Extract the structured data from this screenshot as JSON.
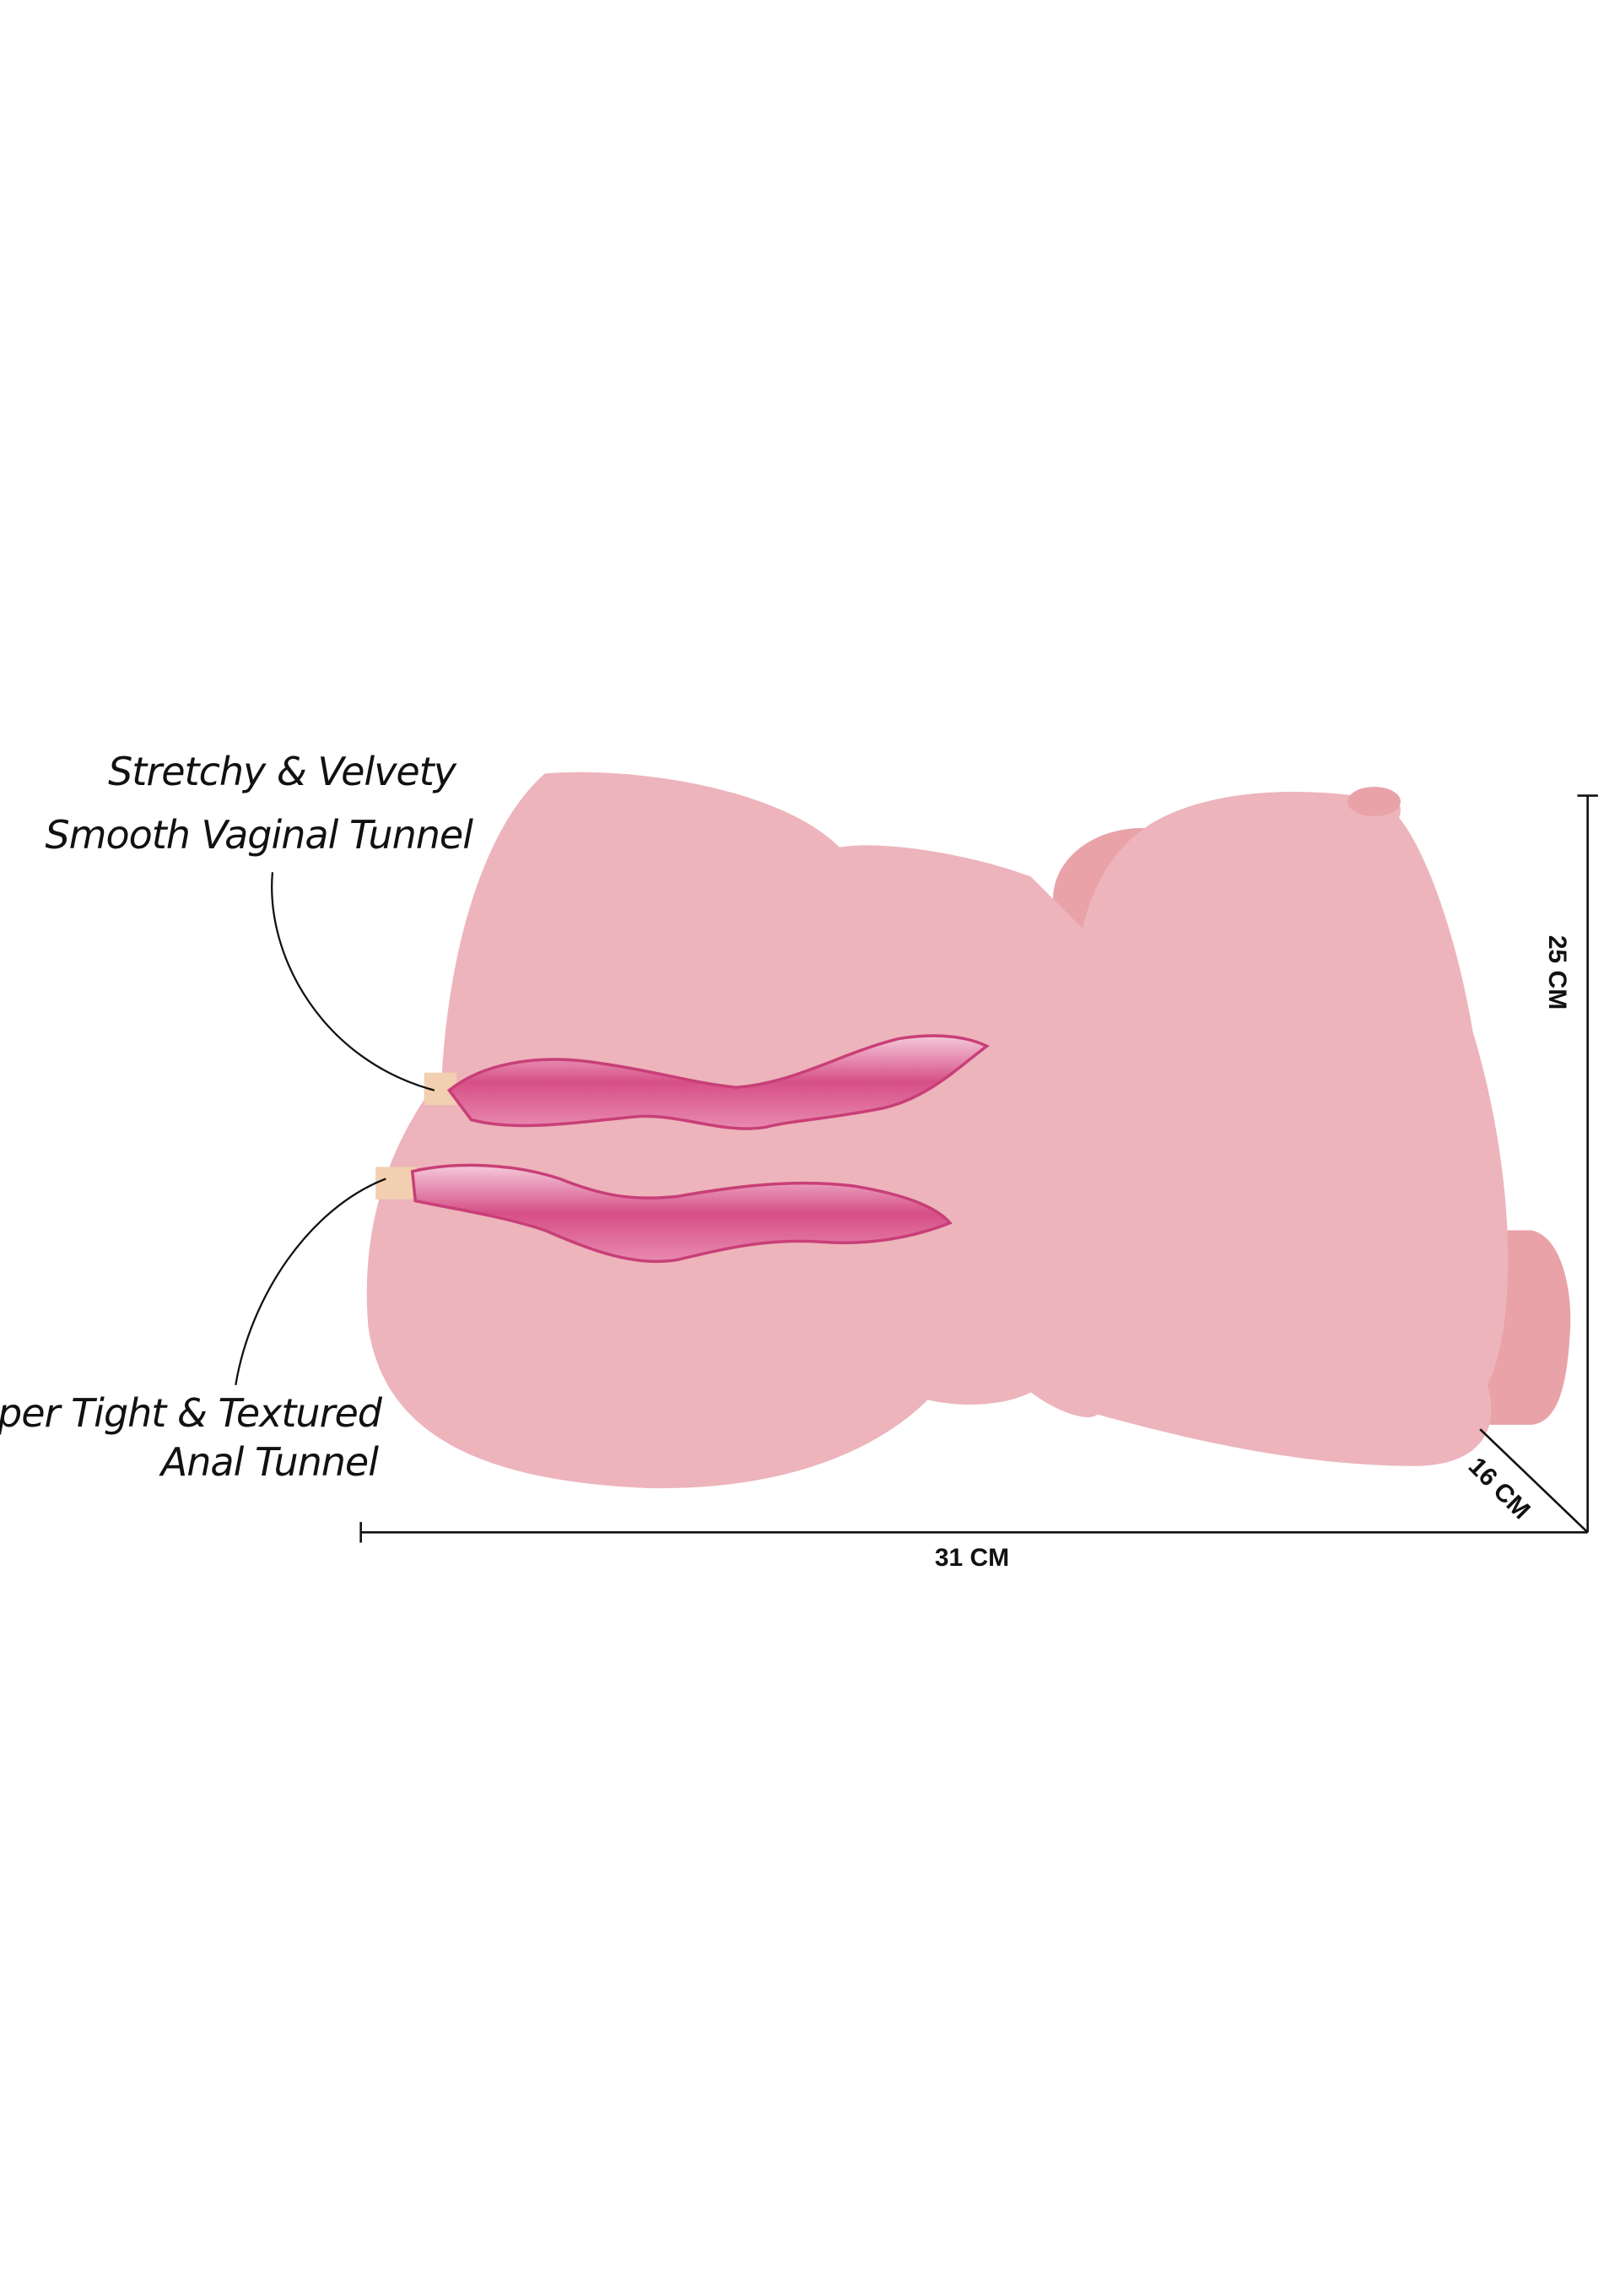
{
  "labels": {
    "top": {
      "line1": "Stretchy & Velvety",
      "line2": "Smooth Vaginal Tunnel"
    },
    "bottom": {
      "line1": "Super Tight & Textured",
      "line2": "Anal Tunnel"
    }
  },
  "dimensions": {
    "width": "31 CM",
    "height": "25 CM",
    "depth": "16 CM"
  },
  "colors": {
    "body": "#edb4bb",
    "body_shadow": "#e8a2a8",
    "tunnel": "#d64f86",
    "tunnel_highlight": "#f5c9da",
    "entrance": "#f2cfb0",
    "line": "#111111"
  }
}
